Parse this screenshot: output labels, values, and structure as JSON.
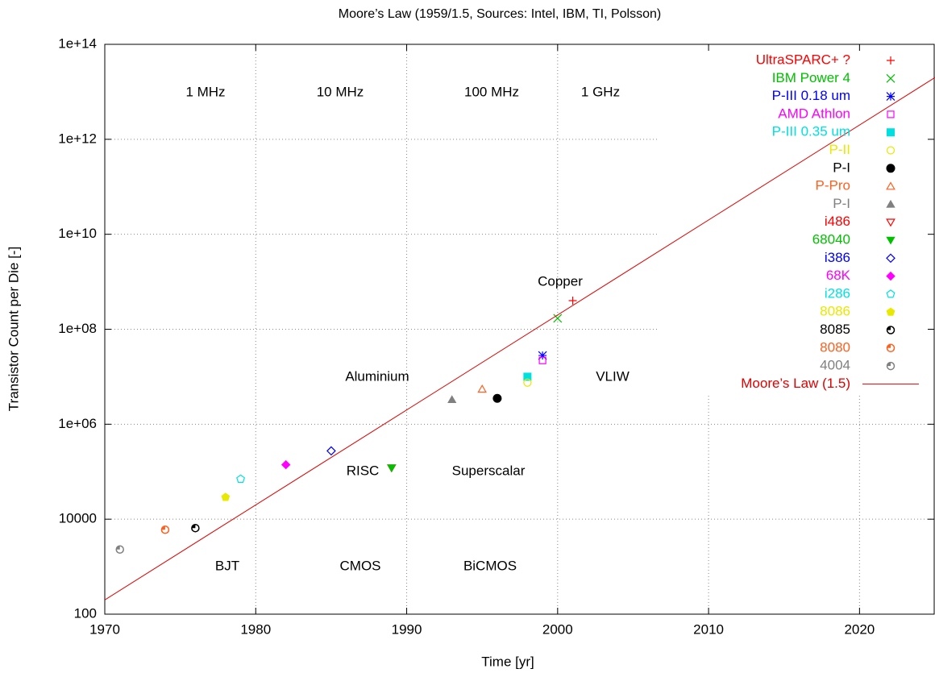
{
  "chart_data": {
    "type": "scatter",
    "title": "Moore’s Law (1959/1.5, Sources: Intel, IBM, TI, Polsson)",
    "xlabel": "Time [yr]",
    "ylabel": "Transistor Count per Die [-]",
    "xlim": [
      1970,
      2025
    ],
    "ylim": [
      100,
      100000000000000
    ],
    "ylog": true,
    "grid": true,
    "legend": "upper right",
    "xticks": [
      1970,
      1980,
      1990,
      2000,
      2010,
      2020
    ],
    "yticks": [
      100,
      10000,
      {
        "value": 1000000,
        "label": "1e+06"
      },
      {
        "value": 100000000,
        "label": "1e+08"
      },
      {
        "value": 10000000000,
        "label": "1e+10"
      },
      {
        "value": 1000000000000,
        "label": "1e+12"
      },
      {
        "value": 100000000000000,
        "label": "1e+14"
      }
    ],
    "annotations": [
      "1 MHz",
      "10 MHz",
      "100 MHz",
      "1 GHz",
      "Copper",
      "Aluminium",
      "VLIW",
      "RISC",
      "Superscalar",
      "BJT",
      "CMOS",
      "BiCMOS"
    ],
    "series": [
      {
        "name": "UltraSPARC+ ?",
        "color": "#ff0000",
        "marker": "plus",
        "x": [
          2001
        ],
        "values": [
          400000000
        ]
      },
      {
        "name": "IBM Power 4",
        "color": "#00c000",
        "marker": "cross",
        "x": [
          2000
        ],
        "values": [
          170000000
        ]
      },
      {
        "name": "P-III 0.18 um",
        "color": "#0000ff",
        "marker": "star",
        "x": [
          1999
        ],
        "values": [
          28000000
        ]
      },
      {
        "name": "AMD Athlon",
        "color": "#ff00ff",
        "marker": "square-open",
        "x": [
          1999
        ],
        "values": [
          22000000
        ]
      },
      {
        "name": "P-III 0.35 um",
        "color": "#00e0e0",
        "marker": "square",
        "x": [
          1998
        ],
        "values": [
          10000000
        ]
      },
      {
        "name": "P-II",
        "color": "#e8e800",
        "marker": "circle-open",
        "x": [
          1998
        ],
        "values": [
          7500000
        ]
      },
      {
        "name": "P-I",
        "color": "#000000",
        "marker": "circle",
        "x": [
          1996
        ],
        "values": [
          3500000
        ]
      },
      {
        "name": "P-Pro",
        "color": "#ff6020",
        "marker": "triangle-open",
        "x": [
          1995
        ],
        "values": [
          5500000
        ]
      },
      {
        "name": "P-I",
        "color": "#808080",
        "marker": "triangle",
        "x": [
          1993
        ],
        "values": [
          3300000
        ]
      },
      {
        "name": "i486",
        "color": "#ff0000",
        "marker": "triangle-down-open",
        "x": [
          1989
        ],
        "values": [
          120000
        ]
      },
      {
        "name": "68040",
        "color": "#00c000",
        "marker": "triangle-down",
        "x": [
          1989
        ],
        "values": [
          120000
        ]
      },
      {
        "name": "i386",
        "color": "#0000ff",
        "marker": "diamond-open",
        "x": [
          1985
        ],
        "values": [
          275000
        ]
      },
      {
        "name": "68K",
        "color": "#ff00ff",
        "marker": "diamond",
        "x": [
          1982
        ],
        "values": [
          140000
        ]
      },
      {
        "name": "i286",
        "color": "#00e0e0",
        "marker": "pentagon-open",
        "x": [
          1979
        ],
        "values": [
          70000
        ]
      },
      {
        "name": "8086",
        "color": "#e8e800",
        "marker": "pentagon",
        "x": [
          1978
        ],
        "values": [
          29000
        ]
      },
      {
        "name": "8085",
        "color": "#000000",
        "marker": "circle-dot",
        "x": [
          1976
        ],
        "values": [
          6500
        ]
      },
      {
        "name": "8080",
        "color": "#ff6020",
        "marker": "circle-dot",
        "x": [
          1974
        ],
        "values": [
          6000
        ]
      },
      {
        "name": "4004",
        "color": "#808080",
        "marker": "circle-dot",
        "x": [
          1971
        ],
        "values": [
          2300
        ]
      },
      {
        "name": "Moore’s Law (1.5)",
        "color": "#e00000",
        "marker": "line",
        "x": [
          1970,
          2025
        ],
        "values": [
          200,
          20000000000000
        ]
      }
    ]
  }
}
